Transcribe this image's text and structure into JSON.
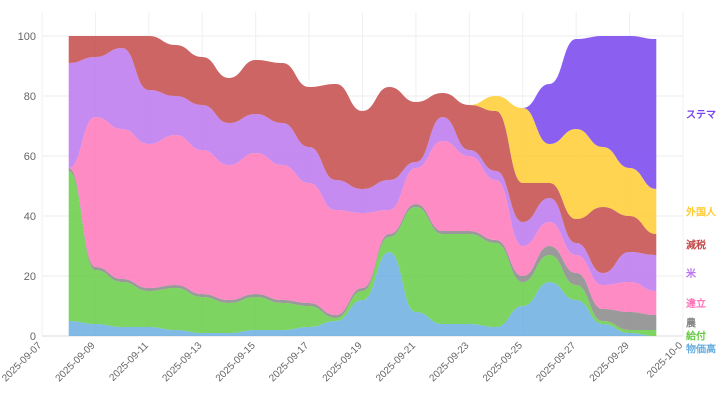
{
  "chart_data": {
    "type": "area",
    "ylim": [
      0,
      100
    ],
    "yticks": [
      "0",
      "20",
      "40",
      "60",
      "80",
      "100"
    ],
    "x": [
      "2025-09-08",
      "2025-09-09",
      "2025-09-10",
      "2025-09-11",
      "2025-09-12",
      "2025-09-13",
      "2025-09-14",
      "2025-09-15",
      "2025-09-16",
      "2025-09-17",
      "2025-09-18",
      "2025-09-19",
      "2025-09-20",
      "2025-09-21",
      "2025-09-22",
      "2025-09-23",
      "2025-09-24",
      "2025-09-25",
      "2025-09-26",
      "2025-09-27",
      "2025-09-28",
      "2025-09-29",
      "2025-09-30"
    ],
    "xtick_labels": [
      "2025-09-07",
      "2025-09-09",
      "2025-09-11",
      "2025-09-13",
      "2025-09-15",
      "2025-09-17",
      "2025-09-19",
      "2025-09-21",
      "2025-09-23",
      "2025-09-25",
      "2025-09-27",
      "2025-09-29",
      "2025-10-0"
    ],
    "grid": true,
    "legend_placement": "right",
    "series": [
      {
        "name": "物価高",
        "color": "#6aaee0",
        "values": [
          5,
          4,
          3,
          3,
          2,
          1,
          1,
          2,
          2,
          3,
          5,
          12,
          28,
          8,
          4,
          4,
          3,
          10,
          18,
          12,
          4,
          1,
          0
        ]
      },
      {
        "name": "給付",
        "color": "#66cc44",
        "values": [
          50,
          18,
          15,
          12,
          14,
          12,
          10,
          11,
          9,
          7,
          1,
          3,
          5,
          35,
          30,
          30,
          28,
          8,
          9,
          5,
          1,
          1,
          2
        ]
      },
      {
        "name": "農",
        "color": "#888888",
        "values": [
          1,
          1,
          1,
          1,
          1,
          1,
          1,
          1,
          1,
          1,
          1,
          1,
          1,
          1,
          1,
          1,
          1,
          2,
          3,
          4,
          4,
          6,
          5
        ]
      },
      {
        "name": "違立",
        "color": "#ff77bb",
        "values": [
          0,
          50,
          50,
          48,
          50,
          48,
          45,
          47,
          45,
          40,
          35,
          25,
          8,
          12,
          30,
          25,
          20,
          10,
          8,
          6,
          8,
          10,
          8
        ]
      },
      {
        "name": "米",
        "color": "#bb77ee",
        "values": [
          35,
          20,
          27,
          18,
          13,
          15,
          14,
          13,
          14,
          12,
          10,
          8,
          10,
          2,
          8,
          2,
          3,
          8,
          8,
          4,
          4,
          10,
          12
        ]
      },
      {
        "name": "減税",
        "color": "#c44a4a",
        "values": [
          9,
          8,
          5,
          20,
          17,
          16,
          15,
          18,
          20,
          20,
          32,
          26,
          31,
          20,
          8,
          15,
          20,
          13,
          5,
          8,
          22,
          12,
          7
        ]
      },
      {
        "name": "外国人",
        "color": "#ffcc33",
        "values": [
          0,
          0,
          0,
          0,
          0,
          0,
          0,
          0,
          0,
          0,
          0,
          0,
          0,
          0,
          0,
          0,
          5,
          25,
          13,
          30,
          20,
          16,
          15
        ]
      },
      {
        "name": "ステマ",
        "color": "#7744ee",
        "values": [
          0,
          0,
          0,
          0,
          0,
          0,
          0,
          0,
          0,
          0,
          0,
          0,
          0,
          0,
          0,
          0,
          0,
          0,
          20,
          30,
          40,
          45,
          50
        ]
      }
    ]
  }
}
